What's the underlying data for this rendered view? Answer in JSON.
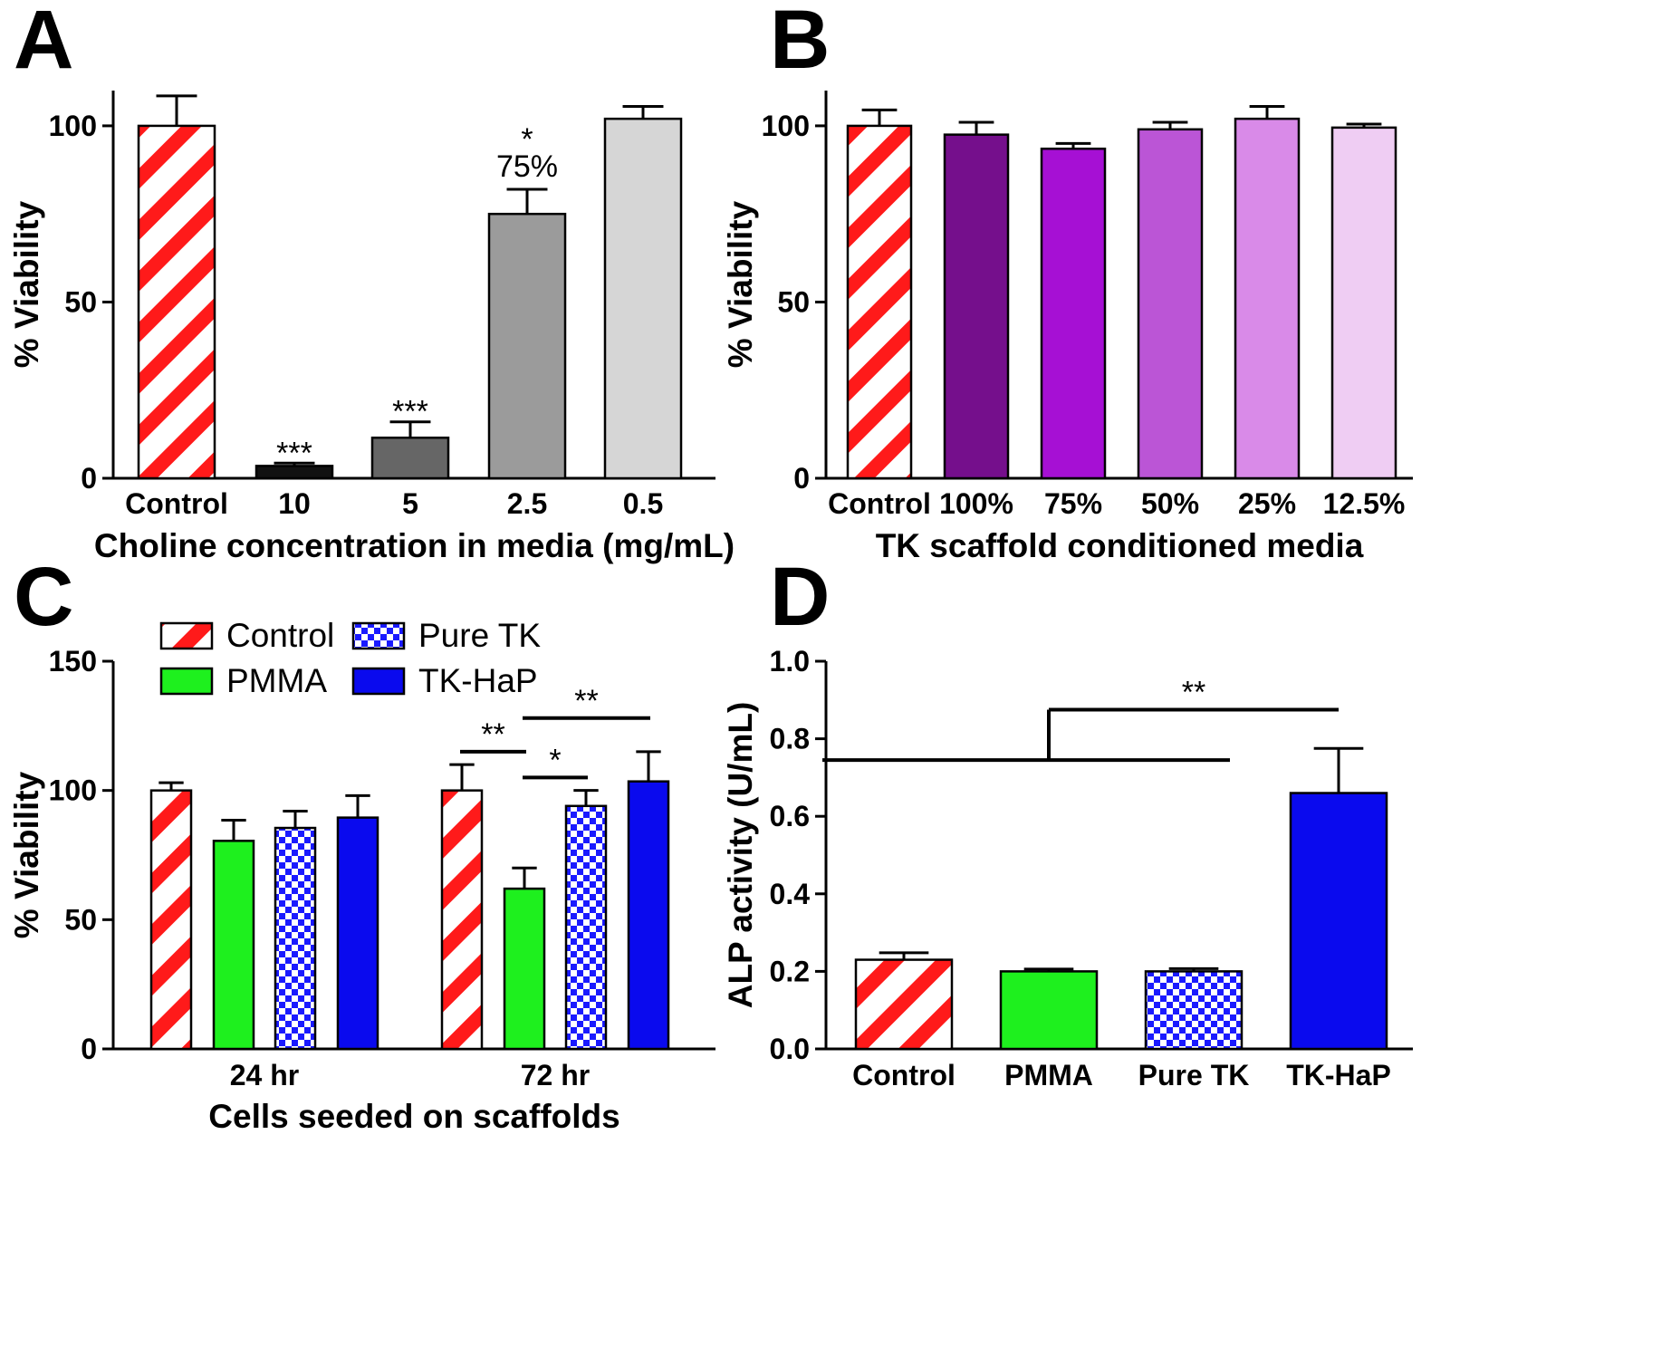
{
  "colors": {
    "control_stripe": "#ff1a1a",
    "pmma": "#1ef01e",
    "pure_tk": "#1a1aff",
    "tk_hap": "#0a0aee",
    "a_10": "#111111",
    "a_5": "#666666",
    "a_2_5": "#9b9b9b",
    "a_0_5": "#d6d6d6",
    "b_100": "#750f8c",
    "b_75": "#a610d4",
    "b_50": "#bb55d6",
    "b_25": "#d98ae8",
    "b_12_5": "#efcdf3"
  },
  "chart_data": [
    {
      "id": "A",
      "panel_label": "A",
      "type": "bar",
      "xlabel": "Choline concentration in media (mg/mL)",
      "ylabel": "% Viability",
      "ylim": [
        0,
        110
      ],
      "yticks": [
        0,
        50,
        100
      ],
      "categories": [
        "Control",
        "10",
        "5",
        "2.5",
        "0.5"
      ],
      "values": [
        100,
        3.5,
        11.5,
        75,
        102
      ],
      "errors": [
        8.5,
        0.8,
        4.5,
        7,
        3.5
      ],
      "fills": [
        "stripe",
        "a_10",
        "a_5",
        "a_2_5",
        "a_0_5"
      ],
      "annotations": [
        {
          "bar": 1,
          "text": "***"
        },
        {
          "bar": 2,
          "text": "***"
        },
        {
          "bar": 3,
          "text": "*"
        },
        {
          "bar": 3,
          "text": "75%"
        }
      ]
    },
    {
      "id": "B",
      "panel_label": "B",
      "type": "bar",
      "xlabel": "TK scaffold conditioned media",
      "ylabel": "% Viability",
      "ylim": [
        0,
        110
      ],
      "yticks": [
        0,
        50,
        100
      ],
      "categories": [
        "Control",
        "100%",
        "75%",
        "50%",
        "25%",
        "12.5%"
      ],
      "values": [
        100,
        97.5,
        93.5,
        99,
        102,
        99.5
      ],
      "errors": [
        4.5,
        3.5,
        1.5,
        2,
        3.5,
        1
      ],
      "fills": [
        "stripe",
        "b_100",
        "b_75",
        "b_50",
        "b_25",
        "b_12_5"
      ]
    },
    {
      "id": "C",
      "panel_label": "C",
      "type": "bar",
      "xlabel": "Cells seeded on scaffolds",
      "ylabel": "% Viability",
      "ylim": [
        0,
        150
      ],
      "yticks": [
        0,
        50,
        100,
        150
      ],
      "categories": [
        "24 hr",
        "72 hr"
      ],
      "series": [
        {
          "name": "Control",
          "values": [
            100,
            100
          ],
          "errors": [
            3,
            10
          ],
          "fill": "stripe"
        },
        {
          "name": "PMMA",
          "values": [
            80.5,
            62
          ],
          "errors": [
            8,
            8
          ],
          "fill": "pmma"
        },
        {
          "name": "Pure TK",
          "values": [
            85.5,
            94
          ],
          "errors": [
            6.5,
            6
          ],
          "fill": "check"
        },
        {
          "name": "TK-HaP",
          "values": [
            89.5,
            103.5
          ],
          "errors": [
            8.5,
            11.5
          ],
          "fill": "tk_hap"
        }
      ],
      "legend": "top",
      "significance": [
        {
          "from": [
            "72 hr",
            "Control"
          ],
          "to": [
            "72 hr",
            "PMMA"
          ],
          "y": 115,
          "text": "**"
        },
        {
          "from": [
            "72 hr",
            "PMMA"
          ],
          "to": [
            "72 hr",
            "Pure TK"
          ],
          "y": 105,
          "text": "*"
        },
        {
          "from": [
            "72 hr",
            "PMMA"
          ],
          "to": [
            "72 hr",
            "TK-HaP"
          ],
          "y": 128,
          "text": "**"
        }
      ]
    },
    {
      "id": "D",
      "panel_label": "D",
      "type": "bar",
      "xlabel": "",
      "ylabel": "ALP activity (U/mL)",
      "ylim": [
        0,
        1.0
      ],
      "yticks": [
        "0.0",
        "0.2",
        "0.4",
        "0.6",
        "0.8",
        "1.0"
      ],
      "categories": [
        "Control",
        "PMMA",
        "Pure TK",
        "TK-HaP"
      ],
      "values": [
        0.23,
        0.2,
        0.2,
        0.66
      ],
      "errors": [
        0.018,
        0.006,
        0.007,
        0.115
      ],
      "fills": [
        "stripe",
        "pmma",
        "check",
        "tk_hap"
      ],
      "bracket": {
        "group_y": 0.745,
        "stem_top_y": 0.875,
        "text": "**"
      }
    }
  ]
}
